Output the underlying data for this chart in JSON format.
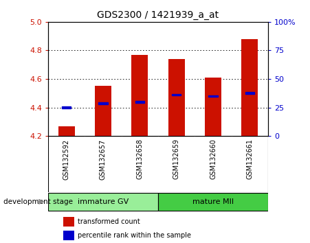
{
  "title": "GDS2300 / 1421939_a_at",
  "categories": [
    "GSM132592",
    "GSM132657",
    "GSM132658",
    "GSM132659",
    "GSM132660",
    "GSM132661"
  ],
  "bar_bottoms": [
    4.2,
    4.2,
    4.2,
    4.2,
    4.2,
    4.2
  ],
  "bar_tops": [
    4.27,
    4.55,
    4.77,
    4.74,
    4.61,
    4.88
  ],
  "percentile_values": [
    4.4,
    4.43,
    4.44,
    4.49,
    4.48,
    4.5
  ],
  "ylim": [
    4.2,
    5.0
  ],
  "yticks": [
    4.2,
    4.4,
    4.6,
    4.8,
    5.0
  ],
  "right_yticks": [
    0,
    25,
    50,
    75,
    100
  ],
  "right_ytick_labels": [
    "0",
    "25",
    "50",
    "75",
    "100%"
  ],
  "bar_color": "#cc1100",
  "percentile_color": "#0000cc",
  "background_color": "#ffffff",
  "plot_bg_color": "#ffffff",
  "xticklabel_bg": "#c8c8c8",
  "tick_color_left": "#cc1100",
  "tick_color_right": "#0000cc",
  "grid_yticks": [
    4.4,
    4.6,
    4.8
  ],
  "groups": [
    {
      "label": "immature GV",
      "indices": [
        0,
        1,
        2
      ],
      "color": "#99ee99"
    },
    {
      "label": "mature MII",
      "indices": [
        3,
        4,
        5
      ],
      "color": "#44cc44"
    }
  ],
  "stage_label": "development stage",
  "legend_entries": [
    {
      "label": "transformed count",
      "color": "#cc1100"
    },
    {
      "label": "percentile rank within the sample",
      "color": "#0000cc"
    }
  ]
}
